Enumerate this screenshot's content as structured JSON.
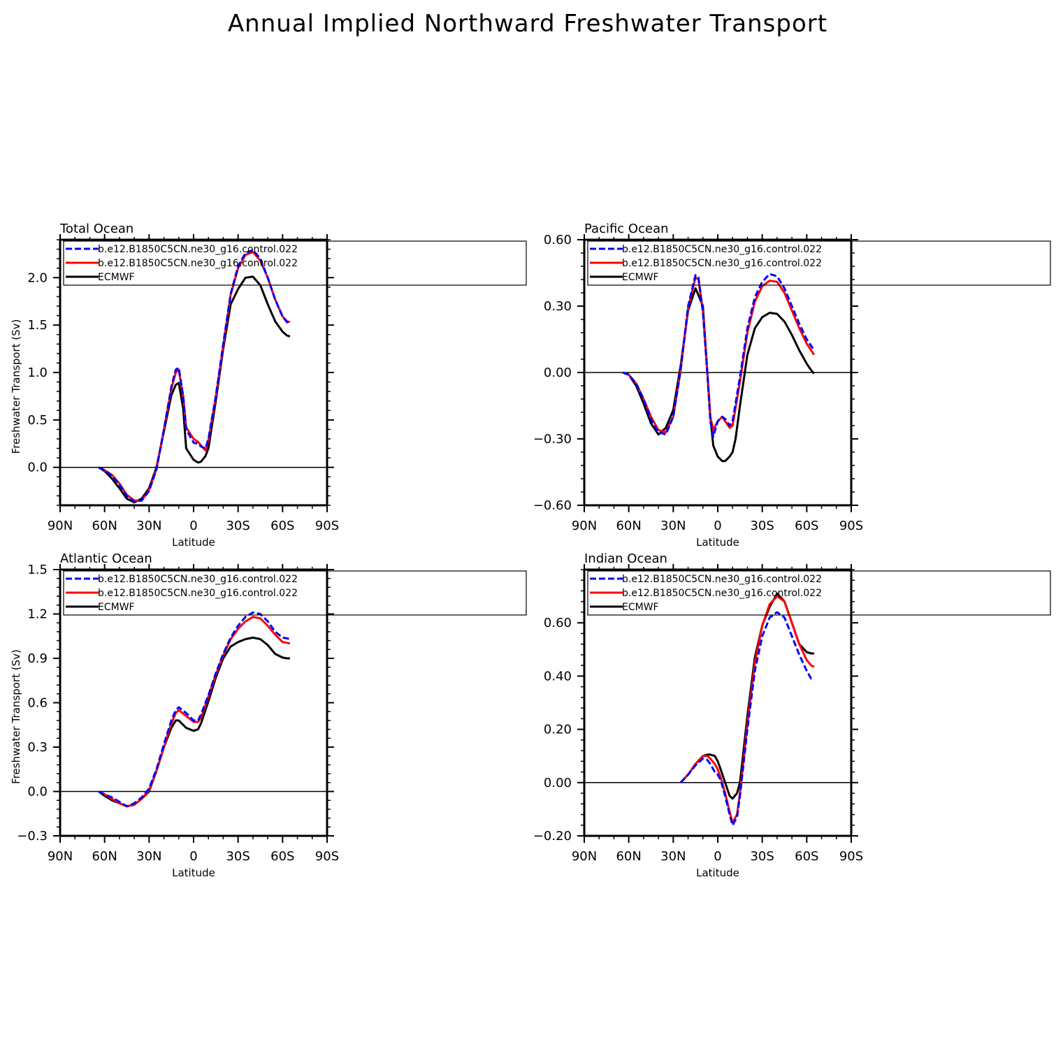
{
  "figure": {
    "title": "Annual Implied Northward Freshwater Transport"
  },
  "chart_data": [
    {
      "type": "line",
      "title": "Total Ocean",
      "xlabel": "Latitude",
      "ylabel": "Freshwater Transport (Sv)",
      "xlim": [
        90,
        -90
      ],
      "ylim": [
        -0.4,
        2.4
      ],
      "xticks": [
        90,
        60,
        30,
        0,
        -30,
        -60,
        -90
      ],
      "xtick_labels": [
        "90N",
        "60N",
        "30N",
        "0",
        "30S",
        "60S",
        "90S"
      ],
      "yticks": [
        0,
        0.5,
        1.0,
        1.5,
        2.0
      ],
      "ytick_labels": [
        "0.0",
        "0.5",
        "1.0",
        "1.5",
        "2.0"
      ],
      "legend_position": "top",
      "series": [
        {
          "name": "b.e12.B1850C5CN.ne30_g16.control.022",
          "color": "#0000ff",
          "dash": "dashed",
          "x": [
            64,
            60,
            55,
            50,
            45,
            40,
            35,
            30,
            25,
            20,
            15,
            12,
            10,
            7,
            5,
            0,
            -3,
            -5,
            -8,
            -10,
            -15,
            -20,
            -25,
            -30,
            -35,
            -40,
            -45,
            -50,
            -55,
            -60,
            -63,
            -65
          ],
          "y": [
            0,
            -0.03,
            -0.09,
            -0.18,
            -0.3,
            -0.36,
            -0.35,
            -0.25,
            -0.02,
            0.4,
            0.85,
            1.03,
            1.05,
            0.75,
            0.4,
            0.26,
            0.25,
            0.22,
            0.2,
            0.3,
            0.75,
            1.3,
            1.83,
            2.12,
            2.26,
            2.29,
            2.2,
            2.0,
            1.77,
            1.59,
            1.53,
            1.52
          ]
        },
        {
          "name": "b.e12.B1850C5CN.ne30_g16.control.022",
          "color": "#ff0000",
          "dash": "solid",
          "x": [
            64,
            60,
            55,
            50,
            45,
            40,
            35,
            30,
            25,
            20,
            15,
            12,
            10,
            7,
            5,
            0,
            -3,
            -5,
            -8,
            -10,
            -15,
            -20,
            -25,
            -30,
            -35,
            -40,
            -45,
            -50,
            -55,
            -60,
            -63,
            -65
          ],
          "y": [
            0,
            -0.03,
            -0.08,
            -0.17,
            -0.29,
            -0.35,
            -0.35,
            -0.24,
            -0.02,
            0.4,
            0.83,
            1.0,
            1.03,
            0.75,
            0.42,
            0.3,
            0.27,
            0.23,
            0.18,
            0.28,
            0.74,
            1.28,
            1.82,
            2.1,
            2.24,
            2.27,
            2.18,
            2.0,
            1.77,
            1.59,
            1.54,
            1.53
          ]
        },
        {
          "name": "ECMWF",
          "color": "#000000",
          "dash": "solid",
          "x": [
            64,
            60,
            55,
            50,
            45,
            40,
            35,
            30,
            25,
            20,
            15,
            12,
            10,
            7,
            5,
            0,
            -3,
            -5,
            -8,
            -10,
            -15,
            -20,
            -25,
            -30,
            -35,
            -40,
            -45,
            -50,
            -55,
            -60,
            -63,
            -65
          ],
          "y": [
            0,
            -0.04,
            -0.12,
            -0.22,
            -0.33,
            -0.37,
            -0.33,
            -0.22,
            0.0,
            0.38,
            0.76,
            0.87,
            0.89,
            0.62,
            0.2,
            0.08,
            0.05,
            0.06,
            0.12,
            0.2,
            0.7,
            1.25,
            1.72,
            1.88,
            2.0,
            2.01,
            1.92,
            1.72,
            1.54,
            1.43,
            1.39,
            1.38
          ]
        }
      ]
    },
    {
      "type": "line",
      "title": "Pacific Ocean",
      "xlabel": "Latitude",
      "ylabel": "",
      "xlim": [
        90,
        -90
      ],
      "ylim": [
        -0.6,
        0.6
      ],
      "xticks": [
        90,
        60,
        30,
        0,
        -30,
        -60,
        -90
      ],
      "xtick_labels": [
        "90N",
        "60N",
        "30N",
        "0",
        "30S",
        "60S",
        "90S"
      ],
      "yticks": [
        -0.6,
        -0.3,
        0,
        0.3,
        0.6
      ],
      "ytick_labels": [
        "−0.60",
        "−0.30",
        "0.00",
        "0.30",
        "0.60"
      ],
      "legend_position": "top",
      "series": [
        {
          "name": "b.e12.B1850C5CN.ne30_g16.control.022",
          "color": "#0000ff",
          "dash": "dashed",
          "x": [
            64,
            60,
            55,
            50,
            45,
            40,
            35,
            30,
            25,
            20,
            15,
            13,
            10,
            7,
            5,
            3,
            0,
            -3,
            -5,
            -8,
            -10,
            -12,
            -15,
            -20,
            -25,
            -30,
            -35,
            -40,
            -45,
            -50,
            -55,
            -60,
            -63,
            -65
          ],
          "y": [
            0,
            -0.01,
            -0.05,
            -0.12,
            -0.21,
            -0.27,
            -0.28,
            -0.2,
            0.01,
            0.3,
            0.44,
            0.43,
            0.27,
            0.0,
            -0.22,
            -0.29,
            -0.22,
            -0.2,
            -0.21,
            -0.24,
            -0.22,
            -0.14,
            -0.02,
            0.2,
            0.34,
            0.41,
            0.445,
            0.435,
            0.38,
            0.3,
            0.22,
            0.15,
            0.12,
            0.1
          ]
        },
        {
          "name": "b.e12.B1850C5CN.ne30_g16.control.022",
          "color": "#ff0000",
          "dash": "solid",
          "x": [
            64,
            60,
            55,
            50,
            45,
            40,
            35,
            30,
            25,
            20,
            15,
            13,
            10,
            7,
            5,
            3,
            0,
            -3,
            -5,
            -8,
            -10,
            -12,
            -15,
            -20,
            -25,
            -30,
            -35,
            -40,
            -45,
            -50,
            -55,
            -60,
            -63,
            -65
          ],
          "y": [
            0,
            -0.01,
            -0.05,
            -0.12,
            -0.2,
            -0.26,
            -0.27,
            -0.2,
            0.01,
            0.29,
            0.43,
            0.42,
            0.28,
            0.0,
            -0.2,
            -0.26,
            -0.22,
            -0.2,
            -0.22,
            -0.25,
            -0.24,
            -0.16,
            -0.04,
            0.18,
            0.32,
            0.39,
            0.415,
            0.41,
            0.36,
            0.28,
            0.2,
            0.13,
            0.1,
            0.08
          ]
        },
        {
          "name": "ECMWF",
          "color": "#000000",
          "dash": "solid",
          "x": [
            64,
            60,
            55,
            50,
            45,
            40,
            35,
            30,
            25,
            20,
            15,
            13,
            10,
            7,
            5,
            3,
            0,
            -3,
            -5,
            -8,
            -10,
            -12,
            -15,
            -20,
            -25,
            -30,
            -35,
            -40,
            -45,
            -50,
            -55,
            -60,
            -63,
            -65
          ],
          "y": [
            0,
            -0.01,
            -0.06,
            -0.14,
            -0.23,
            -0.28,
            -0.25,
            -0.17,
            0.03,
            0.28,
            0.38,
            0.35,
            0.3,
            0.0,
            -0.2,
            -0.33,
            -0.38,
            -0.4,
            -0.4,
            -0.38,
            -0.36,
            -0.3,
            -0.15,
            0.08,
            0.2,
            0.25,
            0.27,
            0.265,
            0.23,
            0.17,
            0.1,
            0.04,
            0.01,
            -0.005
          ]
        }
      ]
    },
    {
      "type": "line",
      "title": "Atlantic Ocean",
      "xlabel": "Latitude",
      "ylabel": "Freshwater Transport (Sv)",
      "xlim": [
        90,
        -90
      ],
      "ylim": [
        -0.3,
        1.5
      ],
      "xticks": [
        90,
        60,
        30,
        0,
        -30,
        -60,
        -90
      ],
      "xtick_labels": [
        "90N",
        "60N",
        "30N",
        "0",
        "30S",
        "60S",
        "90S"
      ],
      "yticks": [
        -0.3,
        0,
        0.3,
        0.6,
        0.9,
        1.2,
        1.5
      ],
      "ytick_labels": [
        "−0.3",
        "0.0",
        "0.3",
        "0.6",
        "0.9",
        "1.2",
        "1.5"
      ],
      "legend_position": "top",
      "series": [
        {
          "name": "b.e12.B1850C5CN.ne30_g16.control.022",
          "color": "#0000ff",
          "dash": "dashed",
          "x": [
            64,
            60,
            55,
            50,
            45,
            40,
            35,
            30,
            25,
            20,
            15,
            12,
            10,
            5,
            0,
            -3,
            -5,
            -10,
            -15,
            -20,
            -25,
            -30,
            -35,
            -40,
            -45,
            -50,
            -55,
            -60,
            -63,
            -65
          ],
          "y": [
            0,
            -0.02,
            -0.04,
            -0.07,
            -0.1,
            -0.08,
            -0.04,
            0.02,
            0.15,
            0.32,
            0.48,
            0.55,
            0.57,
            0.53,
            0.48,
            0.48,
            0.52,
            0.65,
            0.8,
            0.93,
            1.04,
            1.12,
            1.18,
            1.21,
            1.2,
            1.15,
            1.08,
            1.04,
            1.035,
            1.03
          ]
        },
        {
          "name": "b.e12.B1850C5CN.ne30_g16.control.022",
          "color": "#ff0000",
          "dash": "solid",
          "x": [
            64,
            60,
            55,
            50,
            45,
            40,
            35,
            30,
            25,
            20,
            15,
            12,
            10,
            5,
            0,
            -3,
            -5,
            -10,
            -15,
            -20,
            -25,
            -30,
            -35,
            -40,
            -45,
            -50,
            -55,
            -60,
            -63,
            -65
          ],
          "y": [
            0,
            -0.02,
            -0.05,
            -0.08,
            -0.1,
            -0.09,
            -0.05,
            0.01,
            0.14,
            0.3,
            0.46,
            0.53,
            0.55,
            0.51,
            0.47,
            0.47,
            0.5,
            0.64,
            0.79,
            0.92,
            1.03,
            1.1,
            1.15,
            1.18,
            1.17,
            1.12,
            1.06,
            1.01,
            1.005,
            1.0
          ]
        },
        {
          "name": "ECMWF",
          "color": "#000000",
          "dash": "solid",
          "x": [
            64,
            60,
            55,
            50,
            45,
            40,
            35,
            30,
            25,
            20,
            15,
            12,
            10,
            5,
            0,
            -3,
            -5,
            -10,
            -15,
            -20,
            -25,
            -30,
            -35,
            -40,
            -45,
            -50,
            -55,
            -60,
            -63,
            -65
          ],
          "y": [
            0,
            -0.03,
            -0.06,
            -0.08,
            -0.1,
            -0.09,
            -0.05,
            0.0,
            0.14,
            0.3,
            0.43,
            0.48,
            0.48,
            0.43,
            0.41,
            0.42,
            0.46,
            0.61,
            0.77,
            0.9,
            0.98,
            1.01,
            1.03,
            1.04,
            1.03,
            0.99,
            0.93,
            0.905,
            0.9,
            0.9
          ]
        }
      ]
    },
    {
      "type": "line",
      "title": "Indian Ocean",
      "xlabel": "Latitude",
      "ylabel": "",
      "xlim": [
        90,
        -90
      ],
      "ylim": [
        -0.2,
        0.8
      ],
      "xticks": [
        90,
        60,
        30,
        0,
        -30,
        -60,
        -90
      ],
      "xtick_labels": [
        "90N",
        "60N",
        "30N",
        "0",
        "30S",
        "60S",
        "90S"
      ],
      "yticks": [
        -0.2,
        0,
        0.2,
        0.4,
        0.6
      ],
      "ytick_labels": [
        "−0.20",
        "0.00",
        "0.20",
        "0.40",
        "0.60"
      ],
      "legend_position": "top",
      "series": [
        {
          "name": "b.e12.B1850C5CN.ne30_g16.control.022",
          "color": "#0000ff",
          "dash": "dashed",
          "x": [
            25,
            20,
            15,
            10,
            7,
            5,
            2,
            0,
            -2,
            -5,
            -8,
            -10,
            -13,
            -15,
            -20,
            -25,
            -30,
            -35,
            -40,
            -45,
            -50,
            -55,
            -60,
            -63,
            -65
          ],
          "y": [
            0,
            0.03,
            0.065,
            0.09,
            0.085,
            0.07,
            0.04,
            0.03,
            0.01,
            -0.05,
            -0.12,
            -0.16,
            -0.13,
            -0.05,
            0.2,
            0.42,
            0.55,
            0.62,
            0.64,
            0.62,
            0.55,
            0.48,
            0.42,
            0.39,
            0.385
          ]
        },
        {
          "name": "b.e12.B1850C5CN.ne30_g16.control.022",
          "color": "#ff0000",
          "dash": "solid",
          "x": [
            25,
            20,
            15,
            10,
            7,
            5,
            2,
            0,
            -2,
            -5,
            -8,
            -10,
            -13,
            -15,
            -20,
            -25,
            -30,
            -35,
            -40,
            -45,
            -50,
            -55,
            -60,
            -63,
            -65
          ],
          "y": [
            0,
            0.03,
            0.07,
            0.1,
            0.1,
            0.09,
            0.07,
            0.05,
            0.02,
            -0.04,
            -0.11,
            -0.15,
            -0.12,
            -0.04,
            0.22,
            0.45,
            0.59,
            0.67,
            0.7,
            0.68,
            0.6,
            0.52,
            0.46,
            0.44,
            0.435
          ]
        },
        {
          "name": "ECMWF",
          "color": "#000000",
          "dash": "solid",
          "x": [
            25,
            20,
            15,
            10,
            7,
            5,
            2,
            0,
            -2,
            -5,
            -8,
            -10,
            -13,
            -15,
            -20,
            -25,
            -30,
            -35,
            -40,
            -45,
            -50,
            -55,
            -60,
            -63,
            -65
          ],
          "y": [
            0,
            0.03,
            0.07,
            0.1,
            0.105,
            0.105,
            0.1,
            0.08,
            0.05,
            0.0,
            -0.05,
            -0.06,
            -0.04,
            0.0,
            0.25,
            0.47,
            0.59,
            0.66,
            0.71,
            0.68,
            0.6,
            0.52,
            0.49,
            0.485,
            0.485
          ]
        }
      ]
    }
  ]
}
